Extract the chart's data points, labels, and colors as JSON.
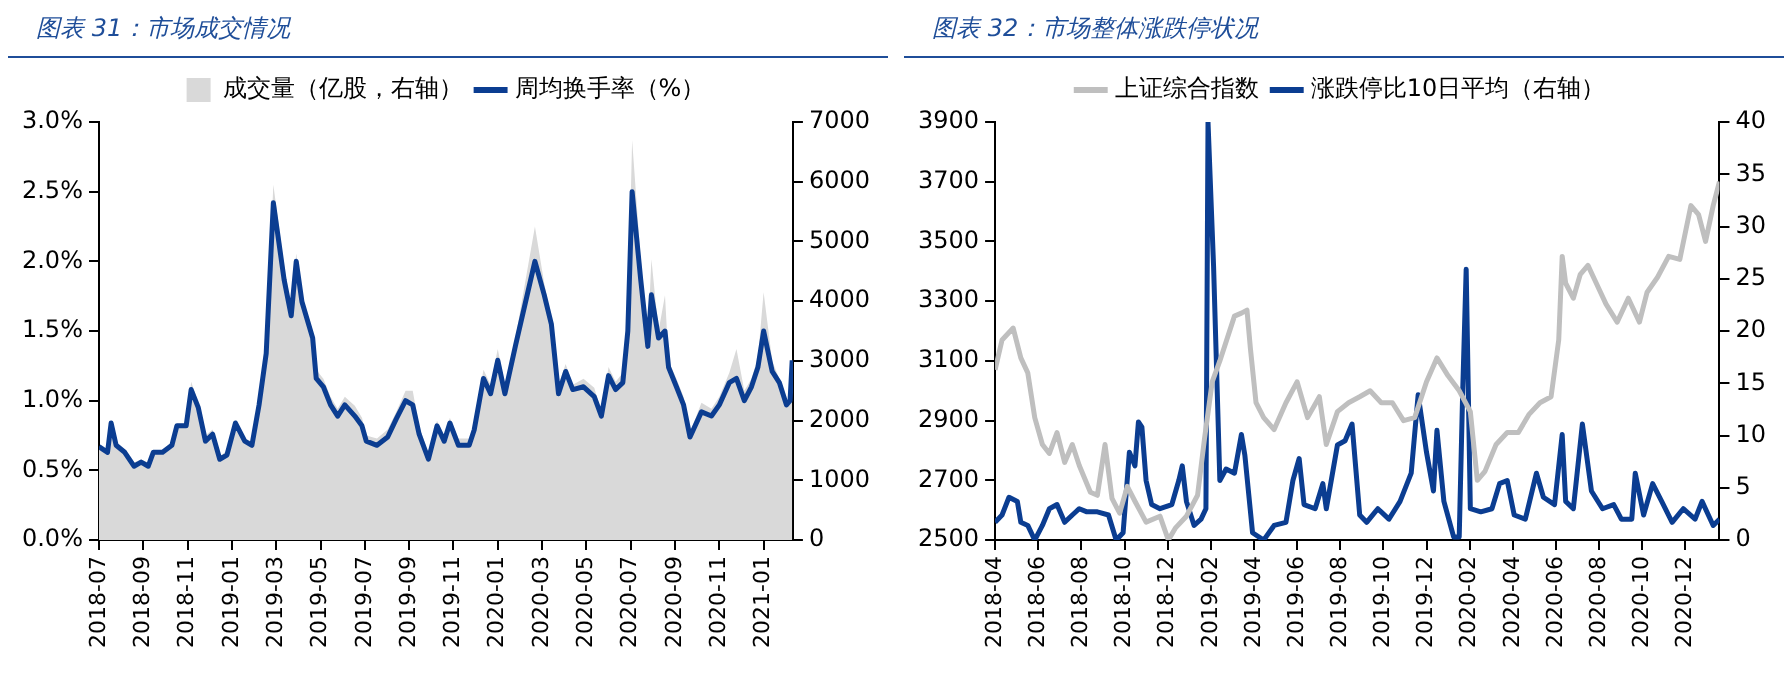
{
  "chart_data": [
    {
      "type": "area",
      "title": "图表 31：市场成交情况",
      "legend": "top",
      "x": [
        "2018-07-01",
        "2018-07-13",
        "2018-07-18",
        "2018-07-25",
        "2018-08-06",
        "2018-08-19",
        "2018-08-29",
        "2018-09-08",
        "2018-09-15",
        "2018-09-28",
        "2018-10-10",
        "2018-10-17",
        "2018-10-30",
        "2018-11-06",
        "2018-11-16",
        "2018-11-26",
        "2018-12-05",
        "2018-12-15",
        "2018-12-25",
        "2019-01-06",
        "2019-01-19",
        "2019-01-29",
        "2019-02-08",
        "2019-02-18",
        "2019-02-28",
        "2019-03-12",
        "2019-03-22",
        "2019-03-29",
        "2019-04-06",
        "2019-04-21",
        "2019-04-26",
        "2019-05-05",
        "2019-05-15",
        "2019-05-25",
        "2019-06-04",
        "2019-06-18",
        "2019-06-28",
        "2019-07-03",
        "2019-07-18",
        "2019-08-02",
        "2019-08-14",
        "2019-08-27",
        "2019-09-06",
        "2019-09-15",
        "2019-09-28",
        "2019-10-09",
        "2019-10-19",
        "2019-10-27",
        "2019-11-08",
        "2019-11-23",
        "2019-11-30",
        "2019-12-12",
        "2019-12-22",
        "2020-01-01",
        "2020-01-11",
        "2020-01-26",
        "2020-02-22",
        "2020-03-04",
        "2020-03-14",
        "2020-03-24",
        "2020-04-03",
        "2020-04-13",
        "2020-04-28",
        "2020-05-12",
        "2020-05-22",
        "2020-06-01",
        "2020-06-11",
        "2020-06-21",
        "2020-06-28",
        "2020-07-03",
        "2020-07-15",
        "2020-07-25",
        "2020-07-30",
        "2020-08-09",
        "2020-08-18",
        "2020-08-23",
        "2020-09-03",
        "2020-09-13",
        "2020-09-22",
        "2020-10-07",
        "2020-10-21",
        "2020-11-01",
        "2020-11-15",
        "2020-11-25",
        "2020-12-05",
        "2020-12-15",
        "2020-12-24",
        "2021-01-01",
        "2021-01-13",
        "2021-01-23",
        "2021-02-02",
        "2021-02-07",
        "2021-02-10"
      ],
      "xlim": [
        "2018-07-01",
        "2021-02-11"
      ],
      "xticks": [
        "2018-07",
        "2018-09",
        "2018-11",
        "2019-01",
        "2019-03",
        "2019-05",
        "2019-07",
        "2019-09",
        "2019-11",
        "2020-01",
        "2020-03",
        "2020-05",
        "2020-07",
        "2020-09",
        "2020-11",
        "2021-01"
      ],
      "ylim": [
        0,
        3
      ],
      "yticks": [
        {
          "value": 0,
          "label": "0.0%"
        },
        {
          "value": 0.5,
          "label": "0.5%"
        },
        {
          "value": 1,
          "label": "1.0%"
        },
        {
          "value": 1.5,
          "label": "1.5%"
        },
        {
          "value": 2,
          "label": "2.0%"
        },
        {
          "value": 2.5,
          "label": "2.5%"
        },
        {
          "value": 3,
          "label": "3.0%"
        }
      ],
      "y2lim": [
        0,
        7000
      ],
      "y2ticks": [
        0,
        1000,
        2000,
        3000,
        4000,
        5000,
        6000,
        7000
      ],
      "series": [
        {
          "name": "成交量（亿股，右轴）",
          "axis": "y2",
          "color": "#d9d9d9",
          "values": [
            1550,
            1500,
            1900,
            1650,
            1500,
            1300,
            1350,
            1300,
            1500,
            1500,
            1650,
            1950,
            1950,
            2650,
            2300,
            1750,
            1850,
            1400,
            1500,
            2000,
            1700,
            1650,
            2350,
            3300,
            5950,
            4600,
            3900,
            4800,
            4100,
            3500,
            2850,
            2700,
            2400,
            2200,
            2400,
            2250,
            2050,
            1750,
            1700,
            1850,
            2150,
            2500,
            2500,
            1900,
            1450,
            2000,
            1750,
            2050,
            1700,
            1700,
            1950,
            2850,
            2600,
            3200,
            2600,
            3400,
            5250,
            4300,
            3700,
            2600,
            2950,
            2600,
            2700,
            2550,
            2150,
            2900,
            2650,
            2800,
            3700,
            6700,
            4700,
            3400,
            4700,
            3500,
            4100,
            3000,
            2700,
            2400,
            1800,
            2300,
            2200,
            2400,
            2800,
            3200,
            2500,
            2700,
            3050,
            4150,
            3000,
            2700,
            2300,
            2400,
            3100
          ]
        },
        {
          "name": "周均换手率（%）",
          "type": "line",
          "color": "#0b3d91",
          "values": [
            0.67,
            0.63,
            0.84,
            0.68,
            0.63,
            0.53,
            0.56,
            0.53,
            0.63,
            0.63,
            0.68,
            0.82,
            0.82,
            1.08,
            0.95,
            0.71,
            0.76,
            0.58,
            0.61,
            0.84,
            0.71,
            0.68,
            0.97,
            1.34,
            2.42,
            1.87,
            1.61,
            2.0,
            1.71,
            1.45,
            1.16,
            1.1,
            0.97,
            0.89,
            0.97,
            0.89,
            0.82,
            0.71,
            0.68,
            0.74,
            0.87,
            1.0,
            0.97,
            0.76,
            0.58,
            0.82,
            0.71,
            0.84,
            0.68,
            0.68,
            0.79,
            1.16,
            1.05,
            1.29,
            1.05,
            1.4,
            2.0,
            1.76,
            1.55,
            1.05,
            1.21,
            1.08,
            1.1,
            1.03,
            0.89,
            1.18,
            1.08,
            1.13,
            1.5,
            2.5,
            1.87,
            1.39,
            1.76,
            1.45,
            1.5,
            1.24,
            1.1,
            0.97,
            0.74,
            0.92,
            0.89,
            0.97,
            1.13,
            1.16,
            1.0,
            1.1,
            1.24,
            1.5,
            1.21,
            1.13,
            0.97,
            1.0,
            1.29
          ]
        }
      ]
    },
    {
      "type": "line",
      "title": "图表 32：市场整体涨跌停状况",
      "legend": "top",
      "xlim": [
        "2018-04-01",
        "2021-01-19"
      ],
      "xticks": [
        "2018-04",
        "2018-06",
        "2018-08",
        "2018-10",
        "2018-12",
        "2019-02",
        "2019-04",
        "2019-06",
        "2019-08",
        "2019-10",
        "2019-12",
        "2020-02",
        "2020-04",
        "2020-06",
        "2020-08",
        "2020-10",
        "2020-12"
      ],
      "ylim": [
        2500,
        3900
      ],
      "yticks": [
        2500,
        2700,
        2900,
        3100,
        3300,
        3500,
        3700,
        3900
      ],
      "y2lim": [
        0,
        40
      ],
      "y2ticks": [
        0,
        5,
        10,
        15,
        20,
        25,
        30,
        35,
        40
      ],
      "series": [
        {
          "name": "上证综合指数",
          "color": "#bfbfbf",
          "x": [
            "2018-04-01",
            "2018-04-11",
            "2018-04-27",
            "2018-05-07",
            "2018-05-17",
            "2018-05-27",
            "2018-06-07",
            "2018-06-17",
            "2018-06-28",
            "2018-07-08",
            "2018-07-19",
            "2018-07-29",
            "2018-08-14",
            "2018-08-24",
            "2018-09-04",
            "2018-09-14",
            "2018-09-25",
            "2018-10-05",
            "2018-10-16",
            "2018-11-01",
            "2018-11-21",
            "2018-12-02",
            "2018-12-12",
            "2018-12-28",
            "2019-01-13",
            "2019-01-23",
            "2019-02-03",
            "2019-02-14",
            "2019-03-04",
            "2019-03-14",
            "2019-03-22",
            "2019-03-27",
            "2019-04-04",
            "2019-04-15",
            "2019-04-30",
            "2019-05-16",
            "2019-06-01",
            "2019-06-16",
            "2019-07-02",
            "2019-07-12",
            "2019-07-28",
            "2019-08-13",
            "2019-08-29",
            "2019-09-13",
            "2019-09-29",
            "2019-10-14",
            "2019-10-30",
            "2019-11-15",
            "2019-12-01",
            "2019-12-16",
            "2020-01-01",
            "2020-01-17",
            "2020-02-02",
            "2020-02-12",
            "2020-02-23",
            "2020-03-08",
            "2020-03-24",
            "2020-04-09",
            "2020-04-24",
            "2020-05-09",
            "2020-05-25",
            "2020-06-05",
            "2020-06-10",
            "2020-06-15",
            "2020-06-26",
            "2020-07-05",
            "2020-07-16",
            "2020-07-26",
            "2020-08-11",
            "2020-08-27",
            "2020-09-12",
            "2020-09-28",
            "2020-10-08",
            "2020-10-23",
            "2020-11-08",
            "2020-11-24",
            "2020-12-09",
            "2020-12-20",
            "2020-12-30",
            "2021-01-10",
            "2021-01-19"
          ],
          "values": [
            3070,
            3170,
            3210,
            3110,
            3060,
            2910,
            2820,
            2790,
            2860,
            2760,
            2820,
            2750,
            2660,
            2650,
            2820,
            2640,
            2590,
            2680,
            2630,
            2560,
            2580,
            2500,
            2540,
            2580,
            2650,
            2840,
            3030,
            3100,
            3250,
            3260,
            3270,
            3140,
            2960,
            2910,
            2870,
            2960,
            3030,
            2910,
            2980,
            2820,
            2930,
            2960,
            2980,
            3000,
            2960,
            2960,
            2900,
            2910,
            3030,
            3110,
            3050,
            3000,
            2930,
            2700,
            2730,
            2820,
            2860,
            2860,
            2920,
            2960,
            2980,
            3170,
            3450,
            3360,
            3310,
            3390,
            3420,
            3370,
            3290,
            3230,
            3310,
            3230,
            3330,
            3380,
            3450,
            3440,
            3620,
            3590,
            3500,
            3620,
            3700
          ]
        },
        {
          "name": "涨跌停比10日平均（右轴）",
          "axis": "y2",
          "color": "#0b3d91",
          "x": [
            "2018-04-01",
            "2018-04-11",
            "2018-04-21",
            "2018-05-02",
            "2018-05-07",
            "2018-05-17",
            "2018-05-27",
            "2018-06-07",
            "2018-06-17",
            "2018-06-28",
            "2018-07-08",
            "2018-07-19",
            "2018-07-29",
            "2018-08-09",
            "2018-08-24",
            "2018-09-09",
            "2018-09-20",
            "2018-09-30",
            "2018-10-08",
            "2018-10-16",
            "2018-10-21",
            "2018-10-26",
            "2018-11-01",
            "2018-11-09",
            "2018-11-21",
            "2018-12-07",
            "2018-12-17",
            "2018-12-22",
            "2018-12-28",
            "2019-01-08",
            "2019-01-18",
            "2019-01-25",
            "2019-01-28",
            "2019-02-05",
            "2019-02-14",
            "2019-02-23",
            "2019-03-04",
            "2019-03-14",
            "2019-03-19",
            "2019-03-30",
            "2019-04-15",
            "2019-04-30",
            "2019-05-16",
            "2019-05-26",
            "2019-06-04",
            "2019-06-11",
            "2019-06-27",
            "2019-07-07",
            "2019-07-12",
            "2019-07-28",
            "2019-08-08",
            "2019-08-18",
            "2019-08-29",
            "2019-09-08",
            "2019-09-24",
            "2019-10-09",
            "2019-10-25",
            "2019-11-10",
            "2019-11-20",
            "2019-12-01",
            "2019-12-11",
            "2019-12-16",
            "2019-12-26",
            "2020-01-09",
            "2020-01-17",
            "2020-01-22",
            "2020-01-27",
            "2020-02-02",
            "2020-02-17",
            "2020-03-02",
            "2020-03-13",
            "2020-03-24",
            "2020-04-03",
            "2020-04-19",
            "2020-05-04",
            "2020-05-14",
            "2020-05-30",
            "2020-06-10",
            "2020-06-15",
            "2020-06-26",
            "2020-07-08",
            "2020-07-21",
            "2020-08-06",
            "2020-08-22",
            "2020-09-02",
            "2020-09-17",
            "2020-09-22",
            "2020-10-03",
            "2020-10-16",
            "2020-10-29",
            "2020-11-13",
            "2020-11-29",
            "2020-12-15",
            "2020-12-25",
            "2021-01-10",
            "2021-01-19"
          ],
          "values": [
            1.7,
            2.4,
            4.1,
            3.7,
            1.7,
            1.4,
            0,
            1.4,
            3.0,
            3.4,
            1.7,
            2.4,
            3.0,
            2.7,
            2.7,
            2.4,
            0,
            0.7,
            8.4,
            7.1,
            11.3,
            10.8,
            5.7,
            3.4,
            3.0,
            3.4,
            5.7,
            7.1,
            3.7,
            1.4,
            2.0,
            3.0,
            40,
            26.2,
            5.7,
            6.8,
            6.4,
            10.1,
            8.1,
            0.7,
            0,
            1.4,
            1.7,
            5.7,
            7.8,
            3.4,
            3.0,
            5.4,
            3.0,
            9.1,
            9.5,
            11.1,
            2.4,
            1.7,
            3.0,
            2.0,
            3.7,
            6.4,
            13.9,
            8.4,
            4.7,
            10.5,
            3.7,
            0.3,
            0.3,
            14.2,
            25.9,
            3.0,
            2.7,
            3.0,
            5.4,
            5.7,
            2.4,
            2.0,
            6.4,
            4.1,
            3.4,
            10.1,
            3.7,
            3.0,
            11.1,
            4.7,
            3.0,
            3.4,
            2.0,
            2.0,
            6.4,
            2.4,
            5.4,
            3.7,
            1.7,
            3.0,
            2.0,
            3.7,
            1.4,
            2.0
          ]
        }
      ]
    }
  ]
}
